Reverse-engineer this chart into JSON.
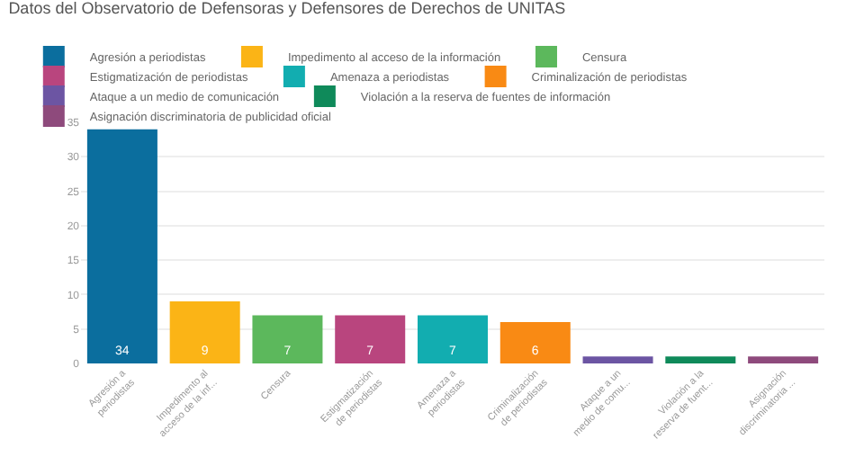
{
  "chart_data": {
    "type": "bar",
    "title": "Datos del Observatorio de Defensoras y Defensores de Derechos de UNITAS",
    "categories": [
      "Agresión a periodistas",
      "Impedimento al acceso de la inf...",
      "Censura",
      "Estigmatización de periodistas",
      "Amenaza a periodistas",
      "Criminalización de periodistas",
      "Ataque a un medio de comu...",
      "Violación a la reserva de fuent...",
      "Asignación discriminatoria ..."
    ],
    "series": [
      {
        "name": "Agresión a periodistas",
        "color": "#0b6e9e",
        "values": [
          34,
          null,
          null,
          null,
          null,
          null,
          null,
          null,
          null
        ],
        "value_labels": [
          "34",
          null,
          null,
          null,
          null,
          null,
          null,
          null,
          null
        ]
      },
      {
        "name": "Impedimento al acceso de la información",
        "color": "#fbb416",
        "values": [
          null,
          9,
          null,
          null,
          null,
          null,
          null,
          null,
          null
        ],
        "value_labels": [
          null,
          "9",
          null,
          null,
          null,
          null,
          null,
          null,
          null
        ]
      },
      {
        "name": "Censura",
        "color": "#5cb85c",
        "values": [
          null,
          null,
          7,
          null,
          null,
          null,
          null,
          null,
          null
        ],
        "value_labels": [
          null,
          null,
          "7",
          null,
          null,
          null,
          null,
          null,
          null
        ]
      },
      {
        "name": "Estigmatización de periodistas",
        "color": "#b9457e",
        "values": [
          null,
          null,
          null,
          7,
          null,
          null,
          null,
          null,
          null
        ],
        "value_labels": [
          null,
          null,
          null,
          "7",
          null,
          null,
          null,
          null,
          null
        ]
      },
      {
        "name": "Amenaza a periodistas",
        "color": "#12adb0",
        "values": [
          null,
          null,
          null,
          null,
          7,
          null,
          null,
          null,
          null
        ],
        "value_labels": [
          null,
          null,
          null,
          null,
          "7",
          null,
          null,
          null,
          null
        ]
      },
      {
        "name": "Criminalización de periodistas",
        "color": "#f98a14",
        "values": [
          null,
          null,
          null,
          null,
          null,
          6,
          null,
          null,
          null
        ],
        "value_labels": [
          null,
          null,
          null,
          null,
          null,
          "6",
          null,
          null,
          null
        ]
      },
      {
        "name": "Ataque a un medio de comunicación",
        "color": "#6c55a3",
        "values": [
          null,
          null,
          null,
          null,
          null,
          null,
          1,
          null,
          null
        ],
        "value_labels": [
          null,
          null,
          null,
          null,
          null,
          null,
          null,
          null,
          null
        ]
      },
      {
        "name": "Violación a la reserva de fuentes de información",
        "color": "#0f8a5a",
        "values": [
          null,
          null,
          null,
          null,
          null,
          null,
          null,
          1,
          null
        ],
        "value_labels": [
          null,
          null,
          null,
          null,
          null,
          null,
          null,
          null,
          null
        ]
      },
      {
        "name": "Asignación discriminatoria de publicidad oficial",
        "color": "#8e4a7c",
        "values": [
          null,
          null,
          null,
          null,
          null,
          null,
          null,
          null,
          1
        ],
        "value_labels": [
          null,
          null,
          null,
          null,
          null,
          null,
          null,
          null,
          null
        ]
      }
    ],
    "ylim": [
      0,
      35
    ],
    "yticks": [
      0,
      5,
      10,
      15,
      20,
      25,
      30,
      35
    ],
    "grid": "y",
    "legend": "top"
  }
}
